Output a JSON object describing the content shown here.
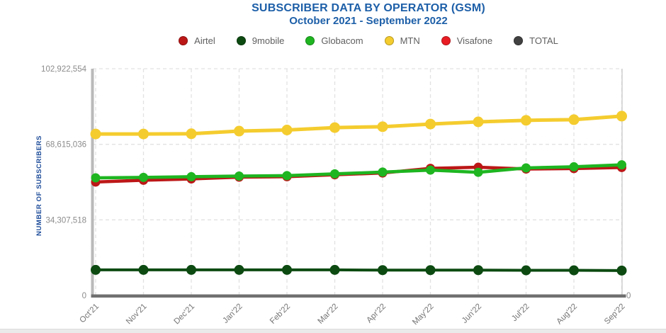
{
  "header": {
    "title": "SUBSCRIBER DATA BY OPERATOR (GSM)",
    "subtitle": "October 2021 - September 2022"
  },
  "colors": {
    "title_blue": "#1d5fa8",
    "axis_label_blue": "#1c4b99",
    "grid": "#e2e2e2",
    "axis_left": "#b9b9b9",
    "axis_bottom": "#707070",
    "axis_right": "#cfcfcf",
    "tick_text": "#8b8b8b",
    "month_text": "#757575",
    "legend_text": "#5f5f5f"
  },
  "chart_data": {
    "type": "line",
    "title": "SUBSCRIBER DATA BY OPERATOR (GSM)",
    "subtitle": "October 2021 - September 2022",
    "xlabel": "",
    "ylabel": "NUMBER OF SUBSCRIBERS",
    "ylim": [
      0,
      102922554
    ],
    "yticks": [
      {
        "value": 0,
        "label": "0"
      },
      {
        "value": 34307518,
        "label": "34,307,518"
      },
      {
        "value": 68615036,
        "label": "68,615,036"
      },
      {
        "value": 102922554,
        "label": "102,922,554"
      }
    ],
    "right_axis_zero_label": "0",
    "grid": "dashed",
    "legend_position": "top-center",
    "categories": [
      "Oct'21",
      "Nov'21",
      "Dec'21",
      "Jan'22",
      "Feb'22",
      "Mar'22",
      "Apr'22",
      "May'22",
      "Jun'22",
      "Jul'22",
      "Aug'22",
      "Sep'22"
    ],
    "series": [
      {
        "name": "Airtel",
        "color": "#bc1717",
        "plotted": true,
        "line_width": 4.5,
        "dot_r": 6.5,
        "values": [
          51500000,
          52300000,
          52900000,
          53700000,
          53900000,
          54800000,
          55600000,
          57700000,
          58200000,
          57400000,
          57600000,
          58100000
        ]
      },
      {
        "name": "9mobile",
        "color": "#0c4a11",
        "plotted": true,
        "line_width": 4,
        "dot_r": 7,
        "values": [
          11600000,
          11600000,
          11600000,
          11600000,
          11600000,
          11600000,
          11500000,
          11500000,
          11500000,
          11400000,
          11400000,
          11300000
        ]
      },
      {
        "name": "Globacom",
        "color": "#1eb521",
        "plotted": true,
        "line_width": 4.5,
        "dot_r": 6.5,
        "values": [
          53400000,
          53600000,
          53900000,
          54200000,
          54400000,
          55200000,
          56000000,
          56900000,
          55900000,
          57900000,
          58400000,
          59300000
        ]
      },
      {
        "name": "MTN",
        "color": "#f4cc2e",
        "plotted": true,
        "line_width": 5,
        "dot_r": 7.5,
        "values": [
          73300000,
          73300000,
          73400000,
          74600000,
          75100000,
          76200000,
          76600000,
          77800000,
          78800000,
          79500000,
          79800000,
          81400000
        ]
      },
      {
        "name": "Visafone",
        "color": "#e91c23",
        "plotted": false,
        "line_width": 4,
        "dot_r": 6.5,
        "values": []
      },
      {
        "name": "TOTAL",
        "color": "#414141",
        "plotted": false,
        "line_width": 4,
        "dot_r": 6.5,
        "values": []
      }
    ]
  }
}
